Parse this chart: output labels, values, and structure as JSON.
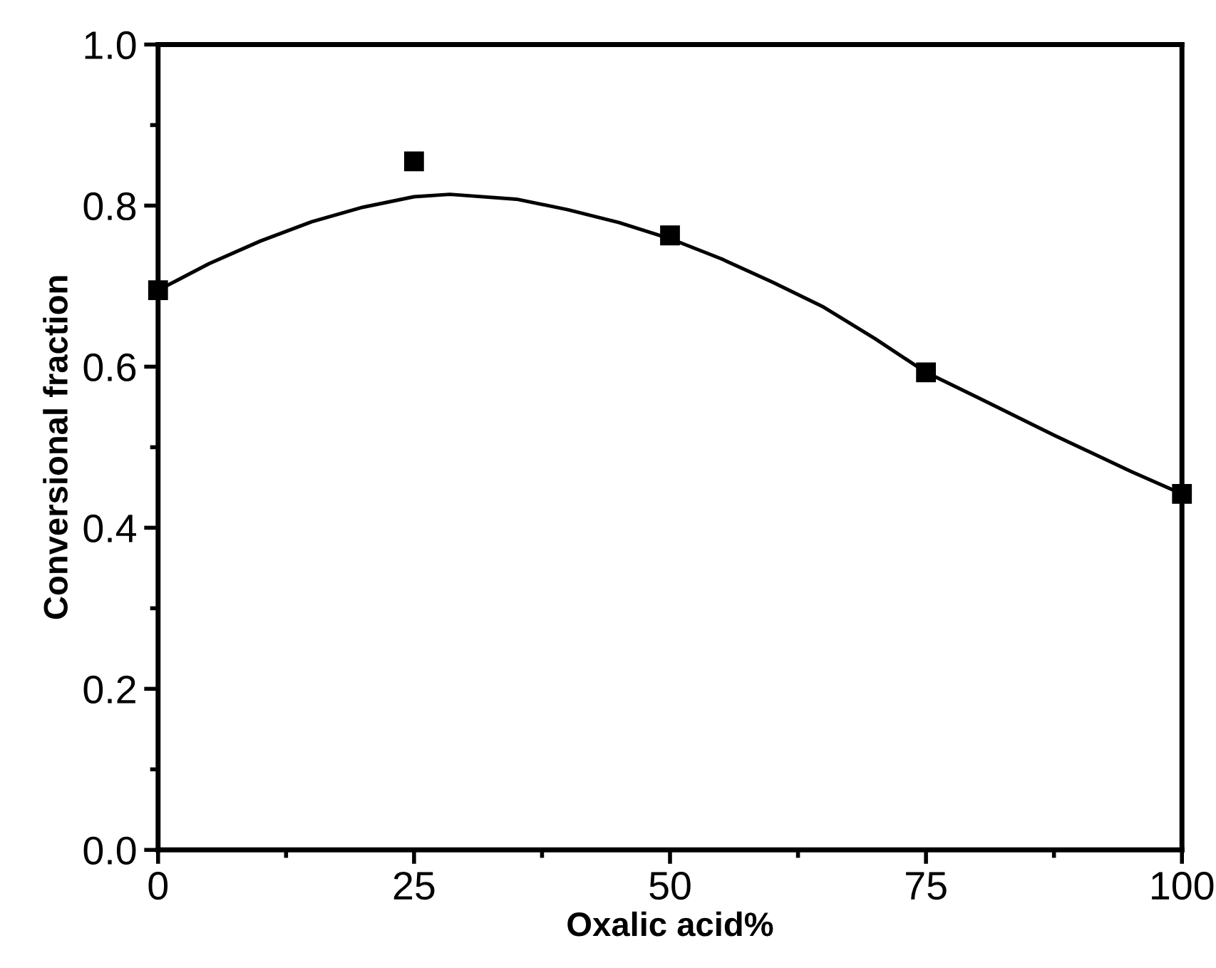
{
  "chart_data": {
    "type": "scatter",
    "xlabel": "Oxalic acid%",
    "ylabel": "Conversional fraction",
    "series": [
      {
        "color": "#000000",
        "marker": "square",
        "x": [
          0,
          25,
          50,
          75,
          100
        ],
        "values": [
          0.695,
          0.855,
          0.763,
          0.593,
          0.442
        ]
      },
      {
        "type": "line",
        "color": "#000000",
        "marker": "none",
        "line_style": "solid",
        "x": [
          0,
          5,
          10,
          15,
          20,
          25,
          28.5,
          35,
          40,
          45,
          50,
          55,
          60,
          65,
          70,
          75,
          80,
          87.5,
          95,
          100
        ],
        "values": [
          0.695,
          0.728,
          0.756,
          0.78,
          0.798,
          0.811,
          0.814,
          0.808,
          0.795,
          0.779,
          0.759,
          0.734,
          0.705,
          0.674,
          0.635,
          0.593,
          0.562,
          0.515,
          0.47,
          0.442
        ]
      }
    ],
    "xlim": [
      0,
      100
    ],
    "xticks": [
      0,
      25,
      50,
      75,
      100
    ],
    "ylim": [
      0.0,
      1.0
    ],
    "yticks": [
      {
        "value": 0.0,
        "label": "0.0"
      },
      {
        "value": 0.2,
        "label": "0.2"
      },
      {
        "value": 0.4,
        "label": "0.4"
      },
      {
        "value": 0.6,
        "label": "0.6"
      },
      {
        "value": 0.8,
        "label": "0.8"
      },
      {
        "value": 1.0,
        "label": "1.0"
      }
    ],
    "grid": false,
    "legend": false
  }
}
